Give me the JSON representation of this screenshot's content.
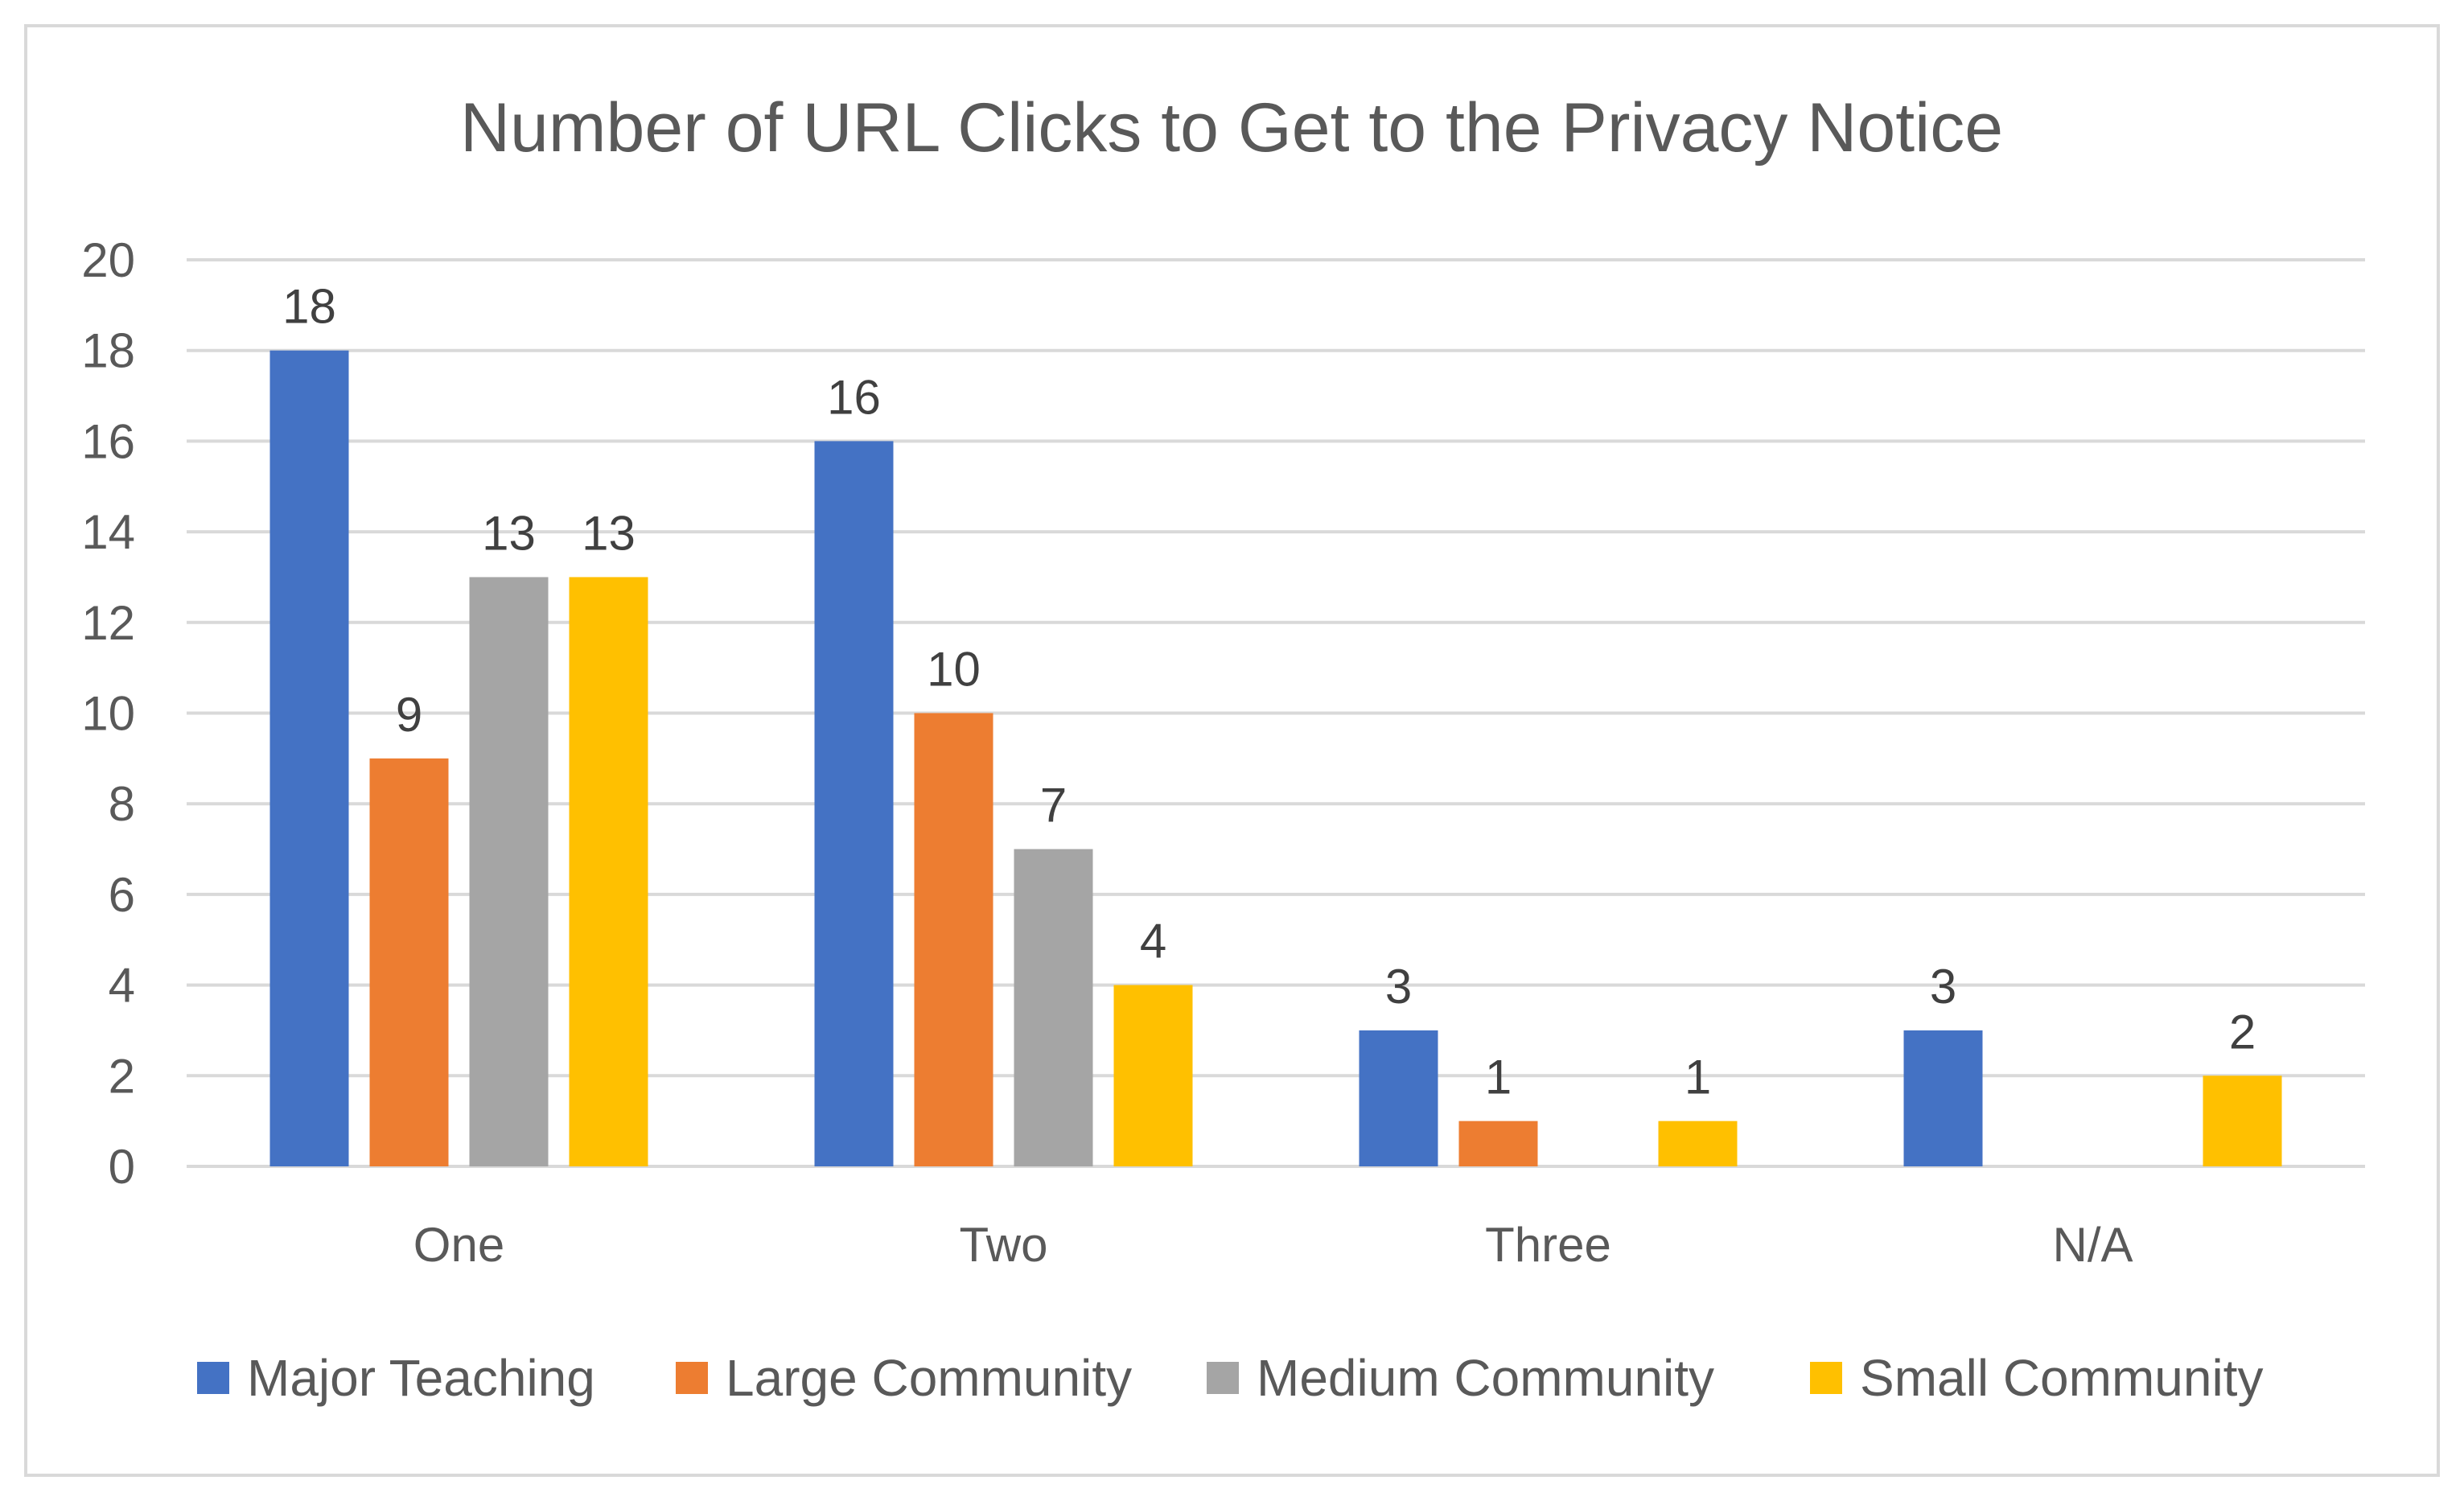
{
  "chart_data": {
    "type": "bar",
    "title": "Number of URL Clicks to Get to the Privacy Notice",
    "xlabel": "",
    "ylabel": "",
    "categories": [
      "One",
      "Two",
      "Three",
      "N/A"
    ],
    "series": [
      {
        "name": "Major Teaching",
        "color": "#4472c4",
        "values": [
          18,
          16,
          3,
          3
        ]
      },
      {
        "name": "Large Community",
        "color": "#ed7d31",
        "values": [
          9,
          10,
          1,
          null
        ]
      },
      {
        "name": "Medium Community",
        "color": "#a5a5a5",
        "values": [
          13,
          7,
          null,
          null
        ]
      },
      {
        "name": "Small Community",
        "color": "#ffc000",
        "values": [
          13,
          4,
          1,
          2
        ]
      }
    ],
    "ylim": [
      0,
      20
    ],
    "yticks": [
      0,
      2,
      4,
      6,
      8,
      10,
      12,
      14,
      16,
      18,
      20
    ],
    "grid": true,
    "legend_position": "bottom",
    "data_labels": true
  },
  "colors": {
    "gridline": "#d9d9d9",
    "border": "#d9d9d9",
    "text": "#595959"
  }
}
